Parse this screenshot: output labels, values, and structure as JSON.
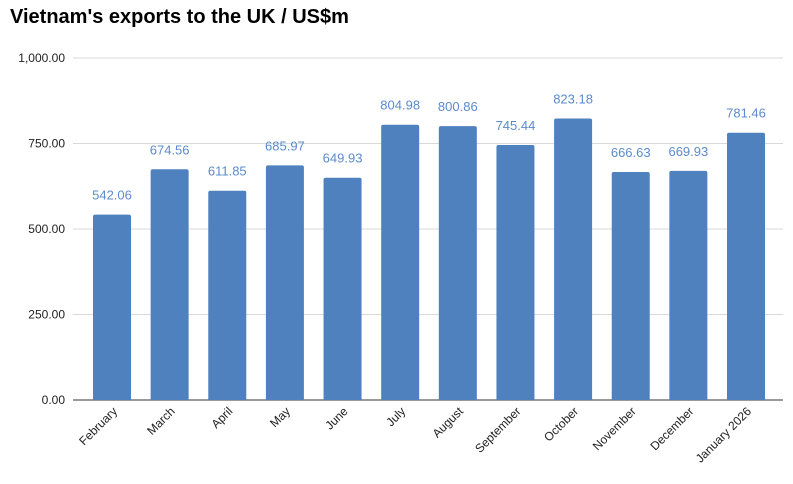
{
  "chart_data": {
    "type": "bar",
    "title": "Vietnam's exports to the UK / US$m",
    "xlabel": "",
    "ylabel": "",
    "ylim": [
      0,
      1000
    ],
    "yticks": [
      0,
      250,
      500,
      750,
      1000
    ],
    "ytick_labels": [
      "0.00",
      "250.00",
      "500.00",
      "750.00",
      "1,000.00"
    ],
    "grid": true,
    "categories": [
      "February",
      "March",
      "April",
      "May",
      "June",
      "July",
      "August",
      "September",
      "October",
      "November",
      "December",
      "January 2026"
    ],
    "values": [
      542.06,
      674.56,
      611.85,
      685.97,
      649.93,
      804.98,
      800.86,
      745.44,
      823.18,
      666.63,
      669.93,
      781.46
    ],
    "value_labels": [
      "542.06",
      "674.56",
      "611.85",
      "685.97",
      "649.93",
      "804.98",
      "800.86",
      "745.44",
      "823.18",
      "666.63",
      "669.93",
      "781.46"
    ],
    "colors": {
      "bar": "#4e81bd",
      "label": "#5b8bcb",
      "grid": "#d9d9d9"
    }
  }
}
